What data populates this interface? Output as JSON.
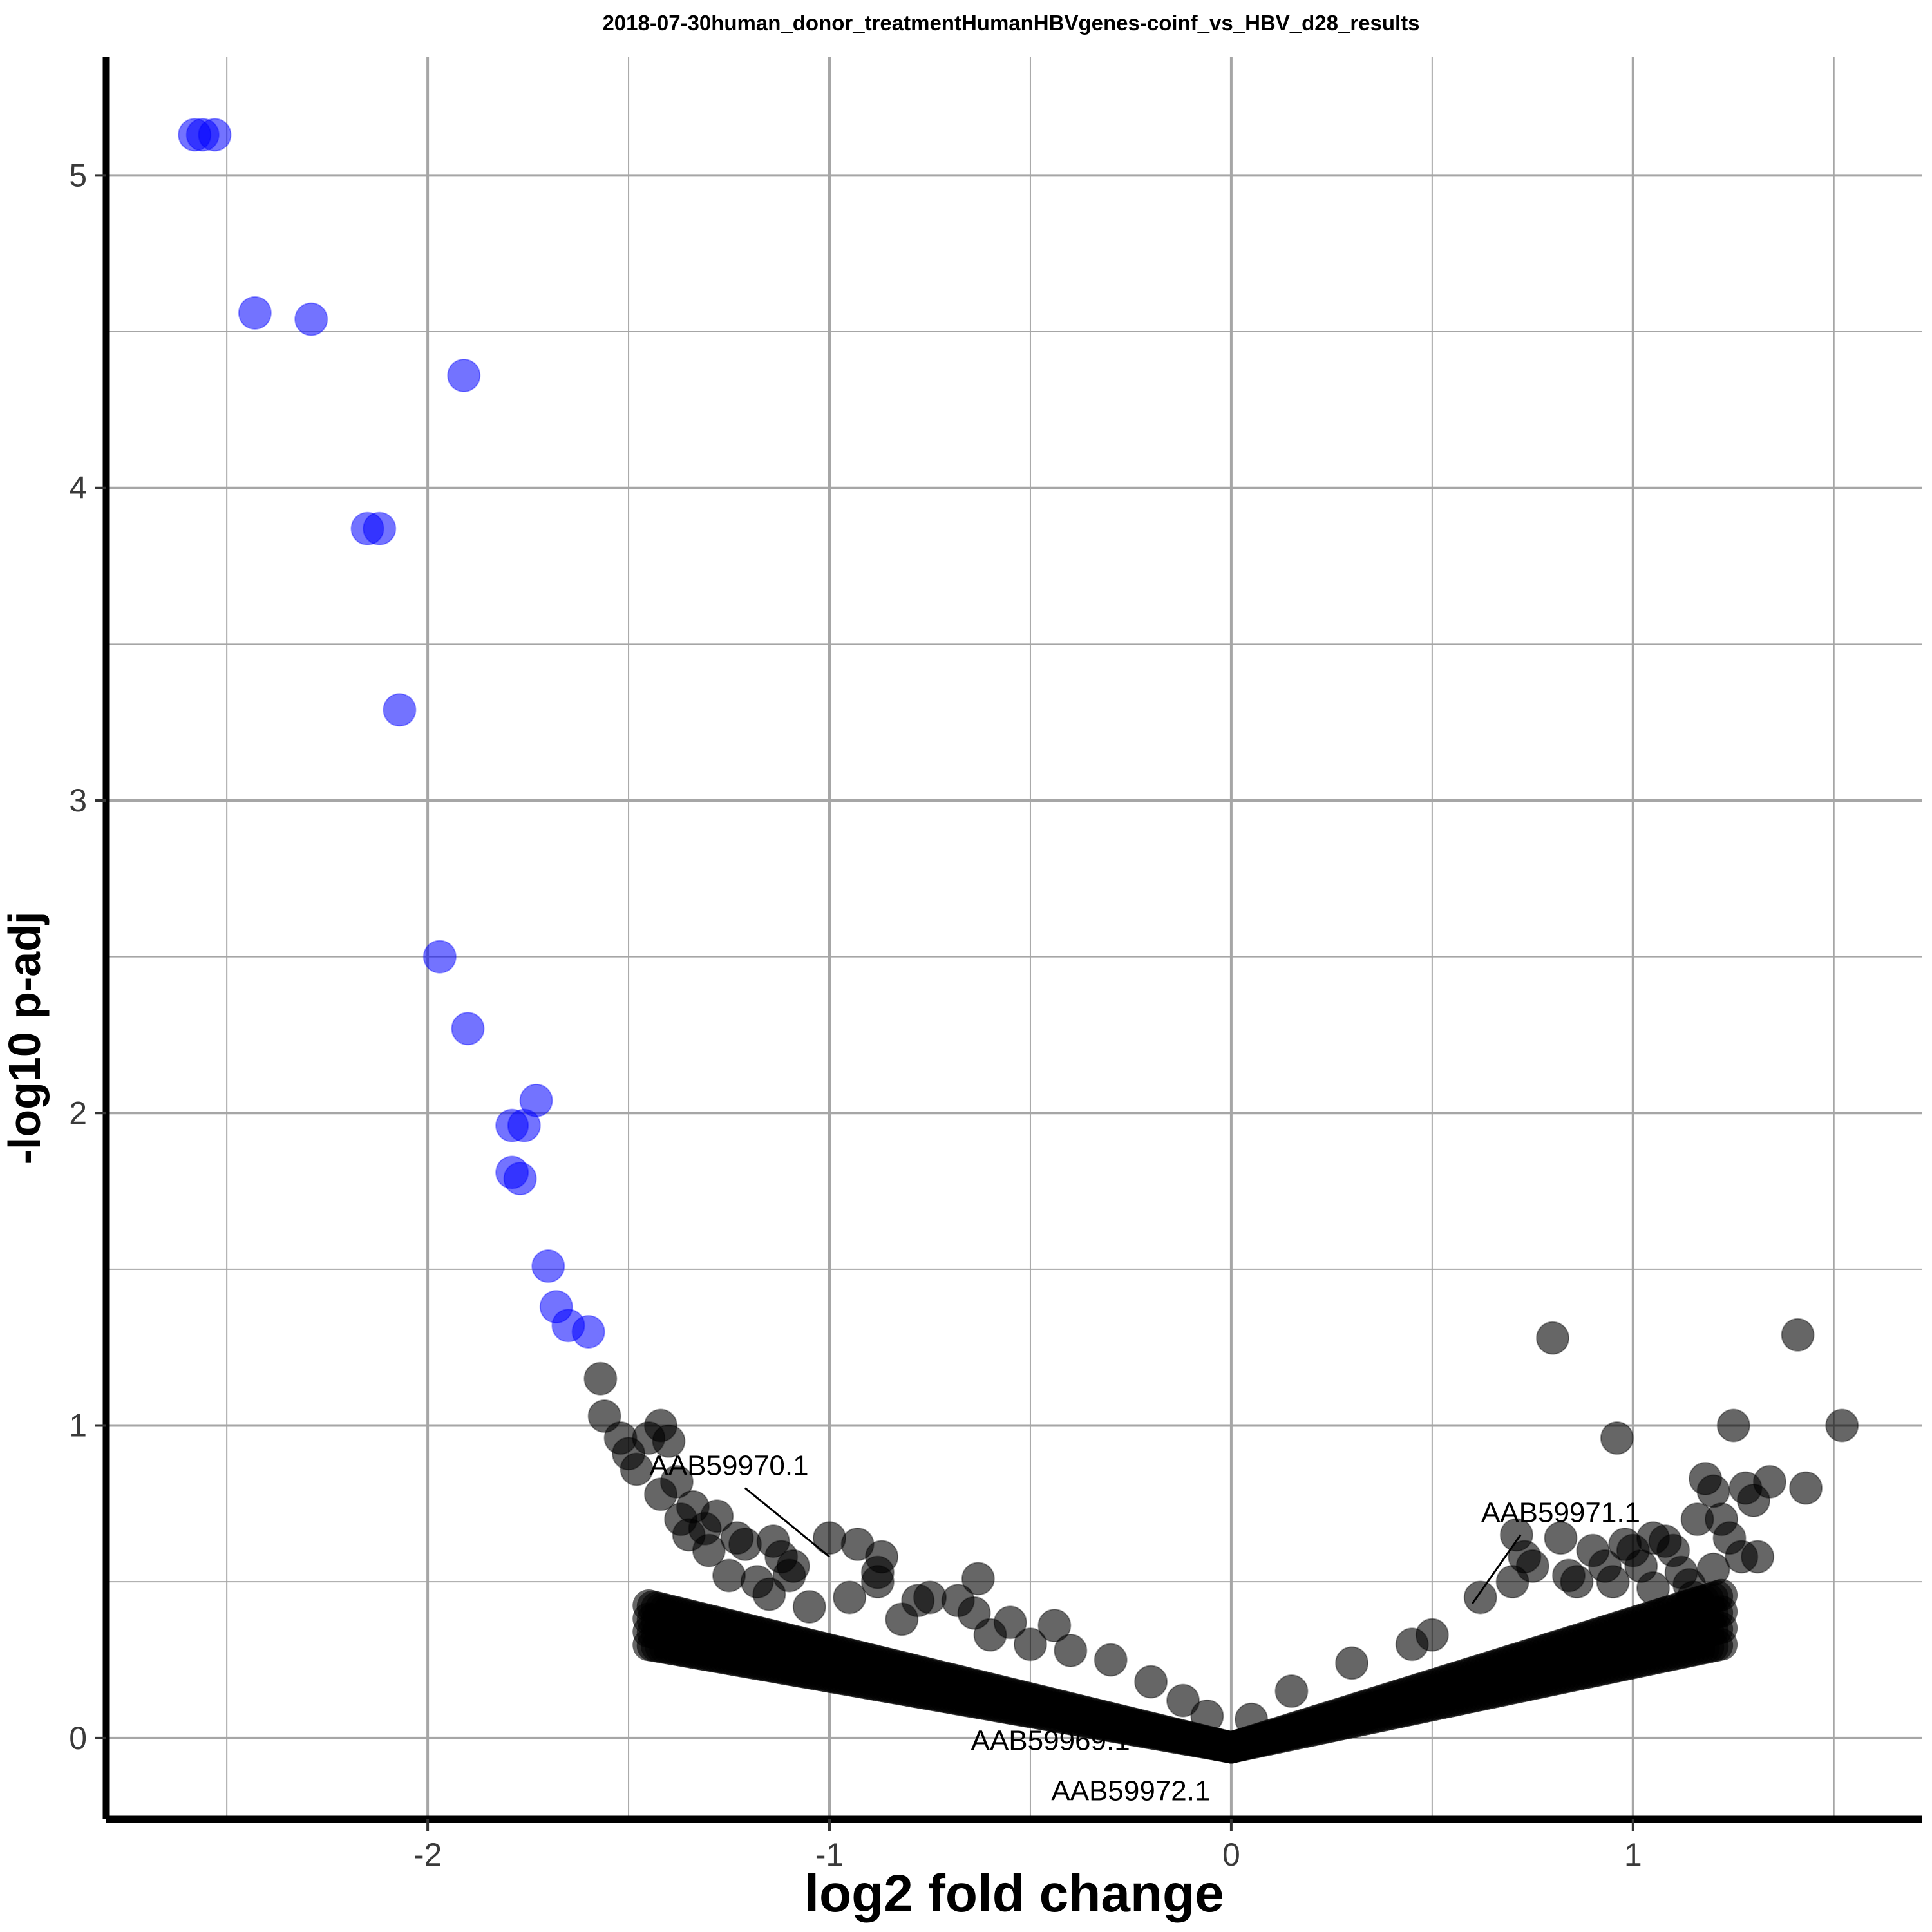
{
  "chart_data": {
    "type": "scatter",
    "title": "2018-07-30human_donor_treatmentHumanHBVgenes-coinf_vs_HBV_d28_results",
    "xlabel": "log2 fold change",
    "ylabel": "-log10 p-adj",
    "xlim": [
      -2.8,
      1.72
    ],
    "ylim": [
      -0.26,
      5.38
    ],
    "x_ticks": [
      -2,
      -1,
      0,
      1
    ],
    "y_ticks": [
      0,
      1,
      2,
      3,
      4,
      5
    ],
    "x_minor_ticks": [
      -2.5,
      -1.5,
      -0.5,
      0.5,
      1.5
    ],
    "y_minor_ticks": [
      0.5,
      1.5,
      2.5,
      3.5,
      4.5
    ],
    "grid": true,
    "legend": "none",
    "colors": {
      "significant": "#0000ff",
      "not_significant": "#000000",
      "grid": "#a6a6a6"
    },
    "series": [
      {
        "group": "significant",
        "color": "#0000ff",
        "points": [
          [
            -2.58,
            5.13
          ],
          [
            -2.56,
            5.13
          ],
          [
            -2.53,
            5.13
          ],
          [
            -2.43,
            4.56
          ],
          [
            -2.29,
            4.54
          ],
          [
            -1.91,
            4.36
          ],
          [
            -2.15,
            3.87
          ],
          [
            -2.12,
            3.87
          ],
          [
            -2.07,
            3.29
          ],
          [
            -1.97,
            2.5
          ],
          [
            -1.9,
            2.27
          ],
          [
            -1.73,
            2.04
          ],
          [
            -1.79,
            1.96
          ],
          [
            -1.76,
            1.96
          ],
          [
            -1.79,
            1.81
          ],
          [
            -1.77,
            1.79
          ],
          [
            -1.7,
            1.51
          ],
          [
            -1.68,
            1.38
          ],
          [
            -1.65,
            1.32
          ],
          [
            -1.6,
            1.3
          ]
        ]
      },
      {
        "group": "not_significant",
        "color": "#000000",
        "points": [
          [
            -1.57,
            1.15
          ],
          [
            -1.56,
            1.03
          ],
          [
            -1.52,
            0.96
          ],
          [
            -1.5,
            0.91
          ],
          [
            -1.48,
            0.86
          ],
          [
            -1.45,
            0.96
          ],
          [
            -1.42,
            1.0
          ],
          [
            -1.4,
            0.95
          ],
          [
            -1.38,
            0.82
          ],
          [
            -1.42,
            0.78
          ],
          [
            -1.34,
            0.74
          ],
          [
            -1.37,
            0.7
          ],
          [
            -1.31,
            0.67
          ],
          [
            -1.28,
            0.71
          ],
          [
            -1.35,
            0.65
          ],
          [
            -1.3,
            0.6
          ],
          [
            -1.23,
            0.64
          ],
          [
            -1.21,
            0.62
          ],
          [
            -1.14,
            0.63
          ],
          [
            -1.12,
            0.58
          ],
          [
            -1.09,
            0.55
          ],
          [
            -1.25,
            0.52
          ],
          [
            -1.18,
            0.5
          ],
          [
            -1.15,
            0.46
          ],
          [
            -1.1,
            0.52
          ],
          [
            -1.0,
            0.64
          ],
          [
            -0.93,
            0.62
          ],
          [
            -0.87,
            0.58
          ],
          [
            -0.88,
            0.53
          ],
          [
            -0.88,
            0.5
          ],
          [
            -0.95,
            0.45
          ],
          [
            -0.78,
            0.44
          ],
          [
            -0.75,
            0.45
          ],
          [
            -0.68,
            0.44
          ],
          [
            -0.63,
            0.51
          ],
          [
            -0.64,
            0.4
          ],
          [
            -0.55,
            0.37
          ],
          [
            -0.44,
            0.36
          ],
          [
            -0.4,
            0.28
          ],
          [
            -0.3,
            0.25
          ],
          [
            -0.2,
            0.18
          ],
          [
            -0.12,
            0.12
          ],
          [
            -0.06,
            0.07
          ],
          [
            -1.05,
            0.42
          ],
          [
            -0.82,
            0.38
          ],
          [
            -0.6,
            0.33
          ],
          [
            -0.5,
            0.3
          ],
          [
            0.62,
            0.45
          ],
          [
            0.7,
            0.5
          ],
          [
            0.71,
            0.65
          ],
          [
            0.73,
            0.58
          ],
          [
            0.75,
            0.55
          ],
          [
            0.8,
            1.28
          ],
          [
            0.82,
            0.64
          ],
          [
            0.84,
            0.52
          ],
          [
            0.86,
            0.5
          ],
          [
            0.9,
            0.6
          ],
          [
            0.93,
            0.55
          ],
          [
            0.96,
            0.96
          ],
          [
            0.98,
            0.62
          ],
          [
            1.0,
            0.6
          ],
          [
            1.02,
            0.55
          ],
          [
            1.05,
            0.64
          ],
          [
            1.08,
            0.63
          ],
          [
            1.1,
            0.6
          ],
          [
            1.12,
            0.53
          ],
          [
            1.14,
            0.49
          ],
          [
            1.16,
            0.7
          ],
          [
            1.18,
            0.83
          ],
          [
            1.2,
            0.79
          ],
          [
            1.22,
            0.7
          ],
          [
            1.24,
            0.64
          ],
          [
            1.25,
            1.0
          ],
          [
            1.27,
            0.58
          ],
          [
            1.28,
            0.8
          ],
          [
            1.3,
            0.76
          ],
          [
            1.31,
            0.58
          ],
          [
            1.34,
            0.82
          ],
          [
            1.41,
            1.29
          ],
          [
            1.43,
            0.8
          ],
          [
            1.52,
            1.0
          ],
          [
            1.2,
            0.54
          ],
          [
            1.15,
            0.45
          ],
          [
            1.05,
            0.48
          ],
          [
            0.95,
            0.5
          ],
          [
            0.45,
            0.3
          ],
          [
            0.3,
            0.24
          ],
          [
            0.15,
            0.15
          ],
          [
            0.05,
            0.06
          ],
          [
            0.5,
            0.33
          ]
        ]
      }
    ],
    "annotations": [
      {
        "label": "AAB59970.1",
        "x": -1.0,
        "y": 0.58,
        "line": true
      },
      {
        "label": "AAB59971.1",
        "x": 0.6,
        "y": 0.43,
        "line": true
      },
      {
        "label": "AAB59969.1",
        "x": -0.45,
        "y": -0.01,
        "line": false
      },
      {
        "label": "AAB59972.1",
        "x": -0.25,
        "y": -0.17,
        "line": false
      }
    ]
  }
}
